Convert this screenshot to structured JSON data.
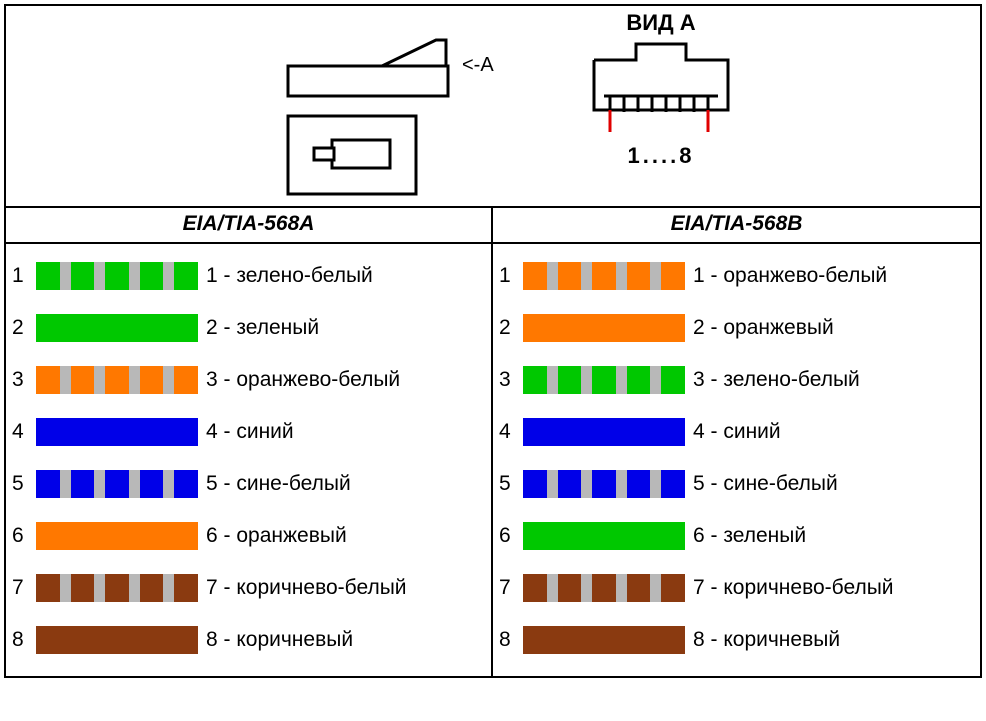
{
  "header": {
    "vid_title": "ВИД А",
    "arrow_label": "<-A",
    "pin_left": "1",
    "pin_right": "8",
    "pin_dots": "...."
  },
  "colors": {
    "green": "#00c800",
    "orange": "#ff7800",
    "blue": "#0000e8",
    "brown": "#8a3a10",
    "stripe_gap": "#b8b8b8",
    "pin_marker": "#e00000",
    "outline": "#000000"
  },
  "standards": [
    {
      "title": "EIA/TIA-568A",
      "wires": [
        {
          "pin": 1,
          "label": "1 - зелено-белый",
          "type": "striped",
          "color_key": "green"
        },
        {
          "pin": 2,
          "label": "2 - зеленый",
          "type": "solid",
          "color_key": "green"
        },
        {
          "pin": 3,
          "label": "3 - оранжево-белый",
          "type": "striped",
          "color_key": "orange"
        },
        {
          "pin": 4,
          "label": "4 - синий",
          "type": "solid",
          "color_key": "blue"
        },
        {
          "pin": 5,
          "label": "5 - сине-белый",
          "type": "striped",
          "color_key": "blue"
        },
        {
          "pin": 6,
          "label": "6 - оранжевый",
          "type": "solid",
          "color_key": "orange"
        },
        {
          "pin": 7,
          "label": "7 - коричнево-белый",
          "type": "striped",
          "color_key": "brown"
        },
        {
          "pin": 8,
          "label": "8 - коричневый",
          "type": "solid",
          "color_key": "brown"
        }
      ]
    },
    {
      "title": "EIA/TIA-568B",
      "wires": [
        {
          "pin": 1,
          "label": "1 - оранжево-белый",
          "type": "striped",
          "color_key": "orange"
        },
        {
          "pin": 2,
          "label": "2 - оранжевый",
          "type": "solid",
          "color_key": "orange"
        },
        {
          "pin": 3,
          "label": "3 - зелено-белый",
          "type": "striped",
          "color_key": "green"
        },
        {
          "pin": 4,
          "label": "4 - синий",
          "type": "solid",
          "color_key": "blue"
        },
        {
          "pin": 5,
          "label": "5 - сине-белый",
          "type": "striped",
          "color_key": "blue"
        },
        {
          "pin": 6,
          "label": "6 - зеленый",
          "type": "solid",
          "color_key": "green"
        },
        {
          "pin": 7,
          "label": "7 - коричнево-белый",
          "type": "striped",
          "color_key": "brown"
        },
        {
          "pin": 8,
          "label": "8 - коричневый",
          "type": "solid",
          "color_key": "brown"
        }
      ]
    }
  ]
}
